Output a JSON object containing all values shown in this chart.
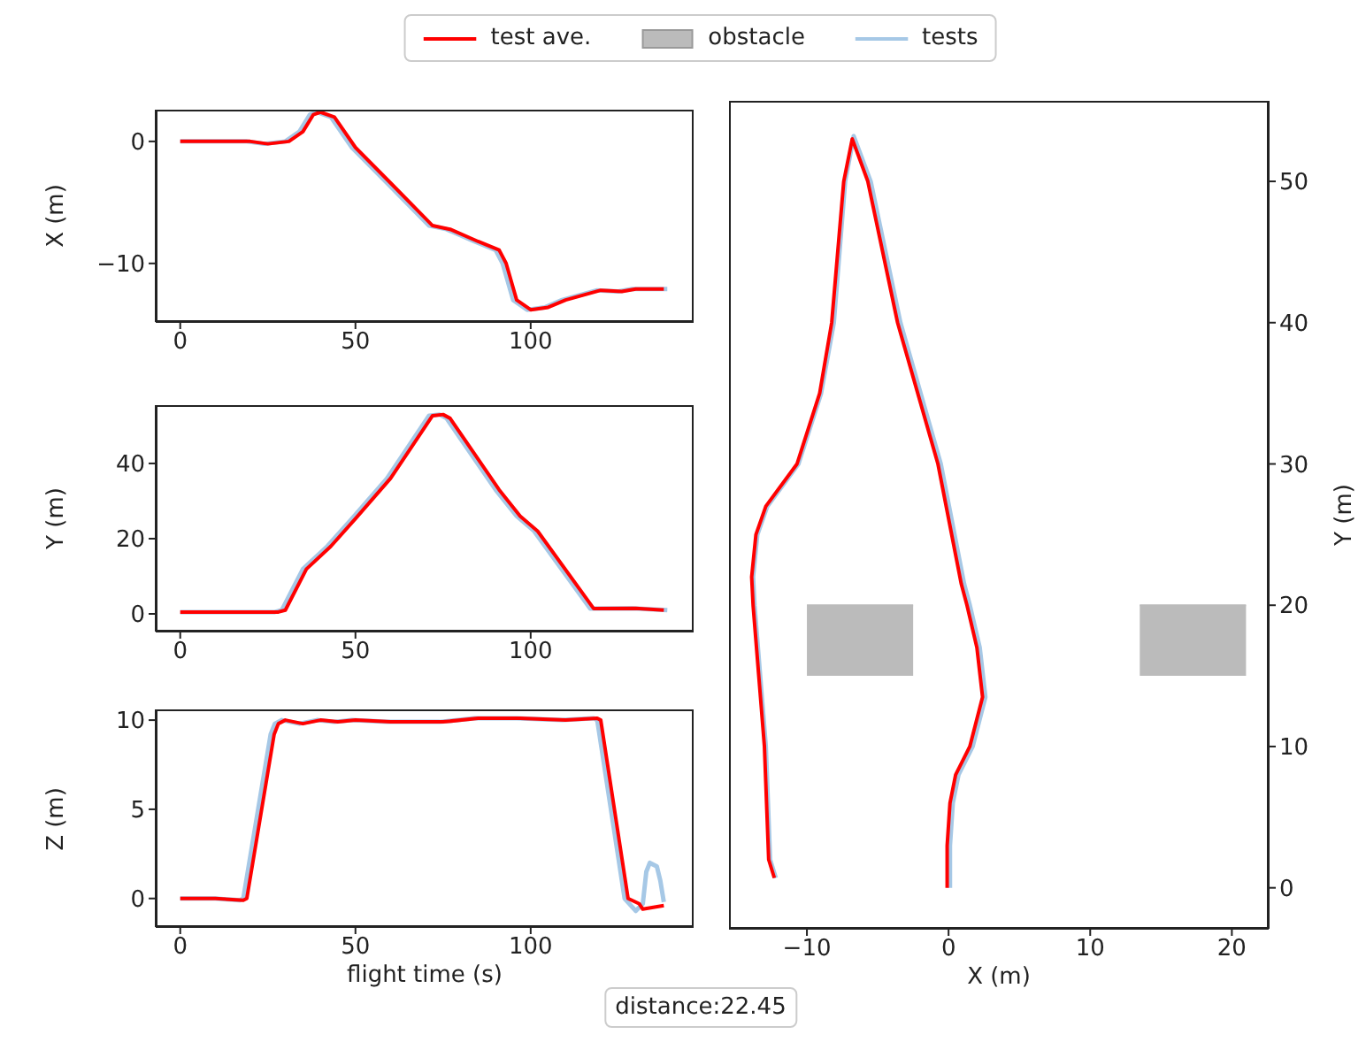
{
  "chart_data": [
    {
      "type": "line",
      "ylabel": "X (m)",
      "legend": "top",
      "xlim": [
        -7,
        146.5
      ],
      "xticks": [
        0,
        50,
        100
      ],
      "ylim": [
        -14.8,
        2.6
      ],
      "yticks": [
        -10,
        0
      ],
      "series": [
        {
          "name": "test ave.",
          "color": "#ff0000",
          "x": [
            0,
            20,
            25,
            31,
            35,
            38,
            40,
            44,
            50,
            60,
            72,
            77,
            85,
            91,
            93,
            96,
            100,
            105,
            110,
            120,
            126,
            130,
            138
          ],
          "values": [
            0,
            0,
            -0.2,
            0,
            0.8,
            2.2,
            2.4,
            2,
            -0.5,
            -3.4,
            -6.9,
            -7.2,
            -8.2,
            -8.9,
            -10,
            -13,
            -13.8,
            -13.6,
            -13,
            -12.2,
            -12.3,
            -12.1,
            -12.1
          ]
        },
        {
          "name": "tests",
          "color": "#a6c8e6",
          "x": [
            0,
            19,
            24,
            30,
            34,
            37,
            39,
            43,
            49,
            59,
            71,
            76,
            84,
            90,
            92,
            95,
            99,
            104,
            109,
            119,
            125,
            129,
            139
          ],
          "values": [
            0,
            0,
            -0.2,
            0,
            0.8,
            2.2,
            2.4,
            2,
            -0.5,
            -3.4,
            -6.9,
            -7.2,
            -8.2,
            -8.9,
            -10,
            -13,
            -13.8,
            -13.6,
            -13,
            -12.2,
            -12.3,
            -12.1,
            -12.1
          ]
        }
      ]
    },
    {
      "type": "line",
      "ylabel": "Y (m)",
      "xlim": [
        -7,
        146.5
      ],
      "xticks": [
        0,
        50,
        100
      ],
      "ylim": [
        -4.7,
        55.5
      ],
      "yticks": [
        0,
        20,
        40
      ],
      "series": [
        {
          "name": "test ave.",
          "color": "#ff0000",
          "x": [
            0,
            28,
            30,
            36,
            43,
            50,
            60,
            72,
            75,
            77,
            91,
            97,
            102,
            118,
            130,
            138
          ],
          "values": [
            0.5,
            0.5,
            1,
            11.9,
            18,
            25.3,
            36,
            52.7,
            53,
            52,
            33,
            26,
            22,
            1.4,
            1.5,
            1
          ]
        },
        {
          "name": "tests",
          "color": "#a6c8e6",
          "x": [
            0,
            27,
            29,
            35,
            42,
            49,
            59,
            71,
            74,
            76,
            90,
            96,
            101,
            117,
            129,
            139
          ],
          "values": [
            0.5,
            0.5,
            1,
            11.9,
            18,
            25.3,
            36,
            52.7,
            53,
            52,
            33,
            26,
            22,
            1.4,
            1.5,
            1
          ]
        }
      ]
    },
    {
      "type": "line",
      "ylabel": "Z (m)",
      "xlabel": "flight time (s)",
      "xlim": [
        -7,
        146.5
      ],
      "xticks": [
        0,
        50,
        100
      ],
      "ylim": [
        -1.6,
        10.6
      ],
      "yticks": [
        0,
        5,
        10
      ],
      "series": [
        {
          "name": "test ave.",
          "color": "#ff0000",
          "x": [
            0,
            10,
            18,
            19,
            26.8,
            28,
            30,
            35,
            40,
            45,
            50,
            60,
            75,
            85,
            97,
            110,
            119,
            120,
            127.8,
            131,
            132,
            135,
            138
          ],
          "values": [
            0,
            0,
            -0.1,
            0,
            9.2,
            9.8,
            10,
            9.8,
            10,
            9.9,
            10,
            9.9,
            9.9,
            10.1,
            10.1,
            10,
            10.1,
            10,
            0,
            -0.3,
            -0.6,
            -0.5,
            -0.4
          ]
        },
        {
          "name": "tests",
          "color": "#a6c8e6",
          "x": [
            0,
            10,
            17,
            18,
            25.8,
            27,
            29,
            34,
            39,
            44,
            49,
            59,
            74,
            84,
            96,
            109,
            118,
            119,
            126.8,
            130,
            132,
            133,
            134,
            136,
            137,
            138
          ],
          "values": [
            0,
            0,
            -0.1,
            0,
            9.2,
            9.8,
            10,
            9.8,
            10,
            9.9,
            10,
            9.9,
            9.9,
            10.1,
            10.1,
            10,
            10.1,
            10,
            0,
            -0.7,
            -0.3,
            1.5,
            2,
            1.8,
            1,
            -0.2
          ]
        }
      ]
    },
    {
      "type": "line",
      "xlabel": "X (m)",
      "y2label": "Y (m)",
      "xlim": [
        -15.5,
        22.6
      ],
      "xticks": [
        -10,
        0,
        10,
        20
      ],
      "y2lim": [
        -2.9,
        55.7
      ],
      "y2ticks": [
        0,
        10,
        20,
        30,
        40,
        50
      ],
      "annotations": [
        "distance:22.45"
      ],
      "series": [
        {
          "name": "test ave.",
          "color": "#ff0000",
          "axis": "y2",
          "x": [
            -0.1,
            -0.1,
            0.1,
            0.5,
            1.5,
            2.4,
            2,
            1.3,
            0.9,
            -0.75,
            -3.6,
            -5.7,
            -6.8,
            -7.4,
            -8.25,
            -9.1,
            -10.7,
            -12.9,
            -13.6,
            -13.9,
            -13.8,
            -13,
            -12.7,
            -12.3
          ],
          "values": [
            0,
            3,
            6,
            8,
            10,
            13.5,
            17,
            20,
            21.5,
            30,
            40,
            50,
            53,
            50,
            40,
            35,
            30,
            27,
            25,
            22,
            20,
            10,
            2,
            0.7
          ]
        },
        {
          "name": "obstacle",
          "color": "#bbbbbb",
          "axis": "y2",
          "x": [
            -10,
            -2.5,
            5,
            13.5,
            21
          ],
          "values": [
            20,
            20,
            null,
            20,
            20
          ],
          "lower": [
            15,
            15,
            null,
            15,
            15
          ],
          "upper": [
            20,
            20,
            null,
            20,
            20
          ]
        },
        {
          "name": "tests",
          "color": "#a6c8e6",
          "axis": "y2",
          "x": [
            0.1,
            0.1,
            0.3,
            0.7,
            1.7,
            2.6,
            2.2,
            1.5,
            1.1,
            -0.55,
            -3.4,
            -5.5,
            -6.7,
            -7.3,
            -8.1,
            -9,
            -10.6,
            -12.8,
            -13.5,
            -13.8,
            -13.7,
            -12.9,
            -12.6,
            -12.2
          ],
          "values": [
            0,
            3,
            6,
            8,
            10,
            13.5,
            17,
            20,
            21.5,
            30,
            40,
            50,
            53.2,
            50,
            40,
            35,
            30,
            27,
            25,
            22,
            20,
            10,
            2,
            0.7
          ]
        }
      ]
    }
  ]
}
